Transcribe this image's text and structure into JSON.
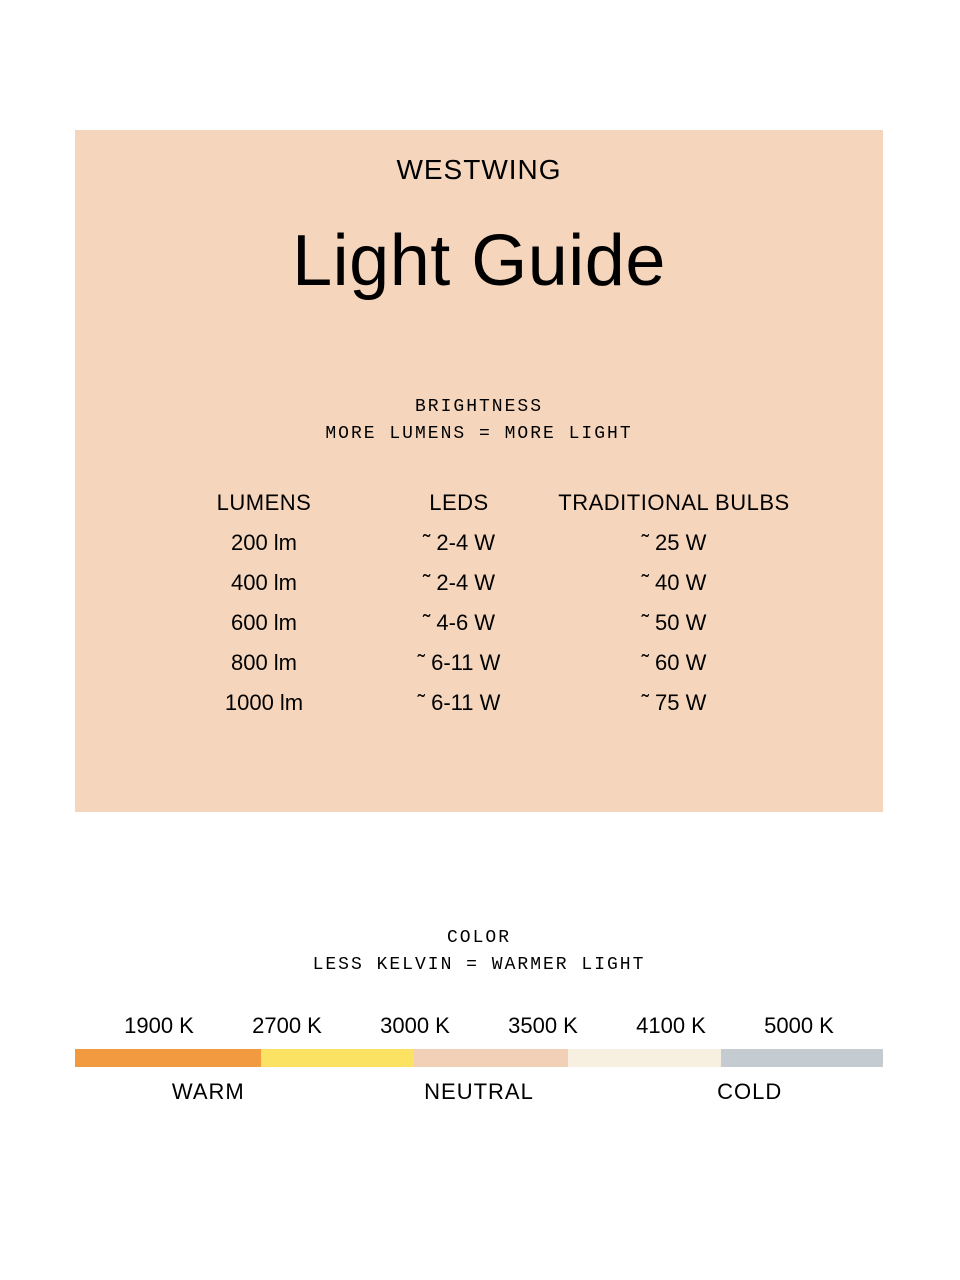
{
  "card": {
    "background_color": "#f5d6bd",
    "brand": "WESTWING",
    "title": "Light Guide",
    "brightness_heading": "BRIGHTNESS",
    "brightness_sub": "MORE LUMENS = MORE LIGHT",
    "columns": {
      "c1": "LUMENS",
      "c2": "LEDS",
      "c3": "TRADITIONAL BULBS"
    },
    "rows": [
      {
        "lumens": "200 lm",
        "leds": "˜ 2-4 W",
        "trad": "˜ 25 W"
      },
      {
        "lumens": "400 lm",
        "leds": "˜ 2-4 W",
        "trad": "˜ 40 W"
      },
      {
        "lumens": "600 lm",
        "leds": "˜ 4-6 W",
        "trad": "˜ 50 W"
      },
      {
        "lumens": "800 lm",
        "leds": "˜ 6-11 W",
        "trad": "˜ 60 W"
      },
      {
        "lumens": "1000 lm",
        "leds": "˜ 6-11 W",
        "trad": "˜ 75 W"
      }
    ]
  },
  "color": {
    "heading": "COLOR",
    "sub": "LESS KELVIN = WARMER LIGHT",
    "kelvin": [
      "1900 K",
      "2700 K",
      "3000 K",
      "3500 K",
      "4100 K",
      "5000 K"
    ],
    "segments": [
      {
        "color": "#f29a3f",
        "width_pct": 23
      },
      {
        "color": "#fbe262",
        "width_pct": 19
      },
      {
        "color": "#f2cfb7",
        "width_pct": 19
      },
      {
        "color": "#f7efe0",
        "width_pct": 19
      },
      {
        "color": "#c4ccd2",
        "width_pct": 20
      }
    ],
    "categories": {
      "warm": {
        "label": "WARM",
        "width_pct": 33
      },
      "neutral": {
        "label": "NEUTRAL",
        "width_pct": 34
      },
      "cold": {
        "label": "COLD",
        "width_pct": 33
      }
    }
  }
}
